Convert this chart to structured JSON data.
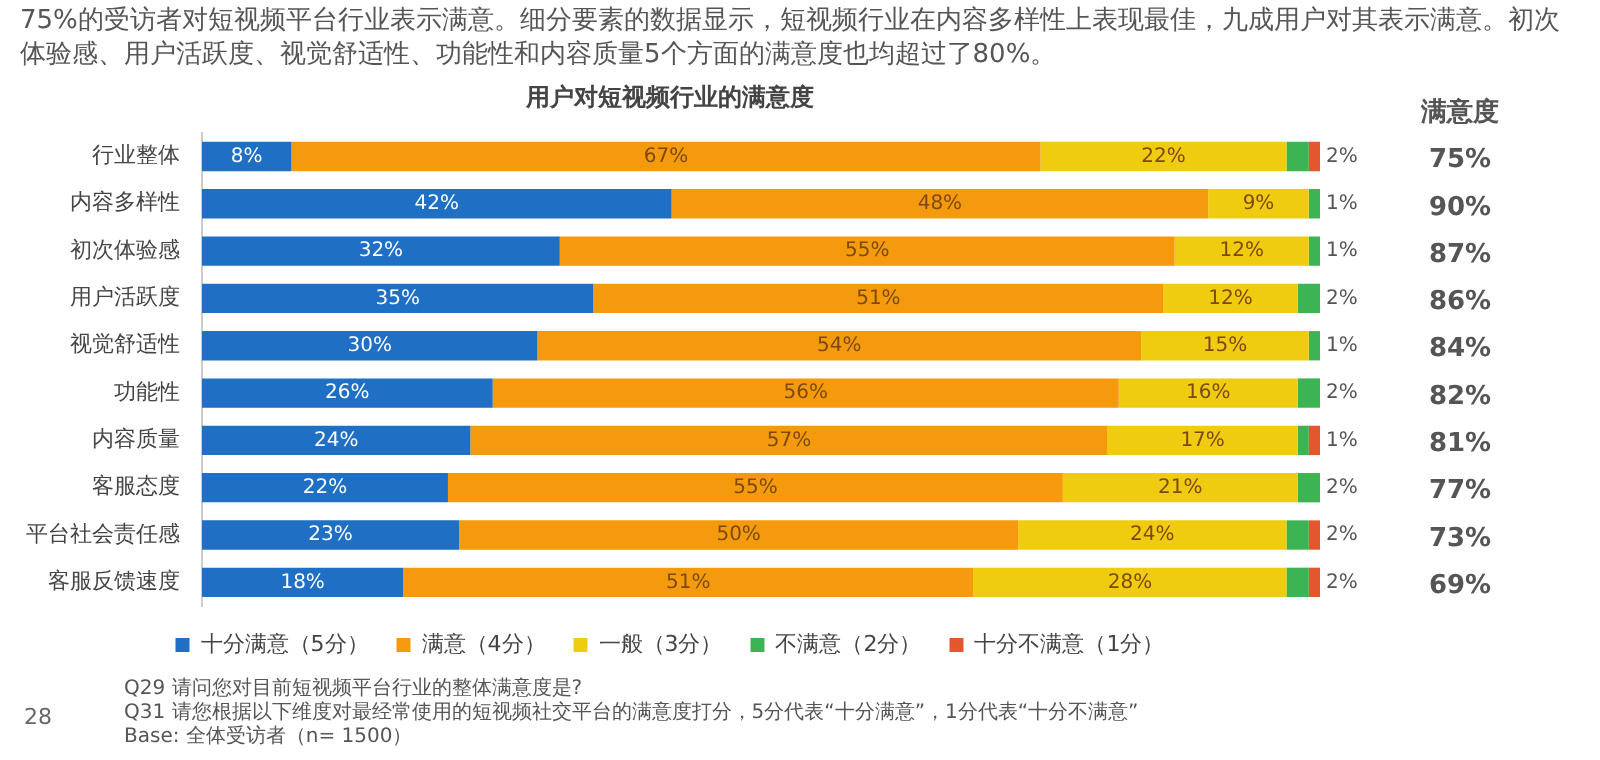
{
  "chart_data": {
    "type": "bar",
    "orientation": "horizontal",
    "stacked": true,
    "title": "用户对短视频行业的满意度",
    "subtitle": "75%的受访者对短视频平台行业表示满意。细分要素的数据显示，短视频行业在内容多样性上表现最佳，九成用户对其表示满意。初次体验感、用户活跃度、视觉舒适性、功能性和内容质量5个方面的满意度也均超过了80%。",
    "y2label": "满意度",
    "categories": [
      "行业整体",
      "内容多样性",
      "初次体验感",
      "用户活跃度",
      "视觉舒适性",
      "功能性",
      "内容质量",
      "客服态度",
      "平台社会责任感",
      "客服反馈速度"
    ],
    "series": [
      {
        "name": "十分满意（5分）",
        "color": "#1f6fc5",
        "values": [
          8,
          42,
          32,
          35,
          30,
          26,
          24,
          22,
          23,
          18
        ],
        "value_labels": [
          "8%",
          "42%",
          "32%",
          "35%",
          "30%",
          "26%",
          "24%",
          "22%",
          "23%",
          "18%"
        ]
      },
      {
        "name": "满意（4分）",
        "color": "#f59a0c",
        "values": [
          67,
          48,
          55,
          51,
          54,
          56,
          57,
          55,
          50,
          51
        ],
        "value_labels": [
          "67%",
          "48%",
          "55%",
          "51%",
          "54%",
          "56%",
          "57%",
          "55%",
          "50%",
          "51%"
        ]
      },
      {
        "name": "一般（3分）",
        "color": "#f0cc10",
        "values": [
          22,
          9,
          12,
          12,
          15,
          16,
          17,
          21,
          24,
          28
        ],
        "value_labels": [
          "22%",
          "9%",
          "12%",
          "12%",
          "15%",
          "16%",
          "17%",
          "21%",
          "24%",
          "28%"
        ]
      },
      {
        "name": "不满意（2分）",
        "color": "#3cb454",
        "values": [
          2,
          1,
          1,
          2,
          1,
          2,
          1,
          2,
          2,
          2
        ],
        "value_labels": [
          "2%",
          "1%",
          "1%",
          "2%",
          "1%",
          "2%",
          "1%",
          "2%",
          "2%",
          "2%"
        ]
      },
      {
        "name": "十分不满意（1分）",
        "color": "#e4572e",
        "values": [
          1,
          0,
          0,
          0,
          0,
          0,
          1,
          0,
          1,
          1
        ],
        "value_labels": [
          null,
          null,
          null,
          null,
          null,
          null,
          null,
          null,
          null,
          null
        ]
      }
    ],
    "legend": "bottom",
    "annotations": [
      "75%",
      "90%",
      "87%",
      "86%",
      "84%",
      "82%",
      "81%",
      "77%",
      "73%",
      "69%",
      "28",
      "Q29 请问您对目前短视频平台行业的整体满意度是?",
      "Q31 请您根据以下维度对最经常使用的短视频社交平台的满意度打分，5分代表“十分满意”，1分代表“十分不满意”",
      "Base: 全体受访者（n= 1500）"
    ]
  }
}
